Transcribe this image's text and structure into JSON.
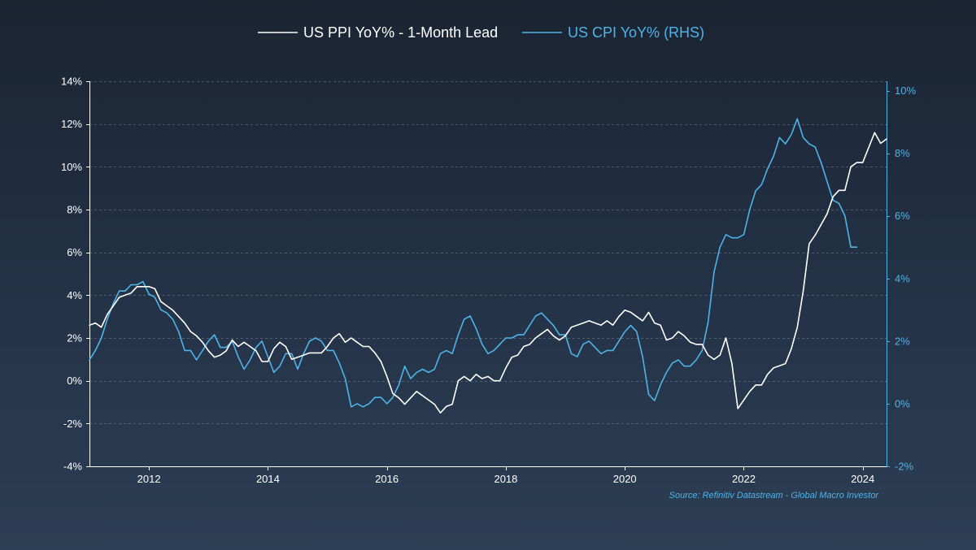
{
  "chart_data": {
    "type": "line",
    "x_range": [
      2011.0,
      2024.4
    ],
    "x_ticks": [
      "2012",
      "2014",
      "2016",
      "2018",
      "2020",
      "2022",
      "2024"
    ],
    "x_tick_values": [
      2012,
      2014,
      2016,
      2018,
      2020,
      2022,
      2024
    ],
    "y_left_range": [
      -4,
      14
    ],
    "y_left_ticks": [
      "-4%",
      "-2%",
      "0%",
      "2%",
      "4%",
      "6%",
      "8%",
      "10%",
      "12%",
      "14%"
    ],
    "y_left_tick_values": [
      -4,
      -2,
      0,
      2,
      4,
      6,
      8,
      10,
      12,
      14
    ],
    "y_right_range": [
      -2,
      10.3
    ],
    "y_right_ticks": [
      "-2%",
      "0%",
      "2%",
      "4%",
      "6%",
      "8%",
      "10%"
    ],
    "y_right_tick_values": [
      -2,
      0,
      2,
      4,
      6,
      8,
      10
    ],
    "grid": "horizontal dashed",
    "legend_position": "top-center",
    "source": "Source: Refinitiv Datastream - Global Macro Investor",
    "series": [
      {
        "name": "US PPI YoY% - 1-Month Lead",
        "axis": "left",
        "color": "#ffffff",
        "points": [
          [
            2011.0,
            2.6
          ],
          [
            2011.1,
            2.7
          ],
          [
            2011.2,
            2.5
          ],
          [
            2011.3,
            3.1
          ],
          [
            2011.4,
            3.5
          ],
          [
            2011.5,
            3.9
          ],
          [
            2011.6,
            4.0
          ],
          [
            2011.7,
            4.1
          ],
          [
            2011.8,
            4.4
          ],
          [
            2011.9,
            4.4
          ],
          [
            2012.0,
            4.4
          ],
          [
            2012.1,
            4.3
          ],
          [
            2012.2,
            3.7
          ],
          [
            2012.3,
            3.5
          ],
          [
            2012.4,
            3.3
          ],
          [
            2012.5,
            3.0
          ],
          [
            2012.6,
            2.7
          ],
          [
            2012.7,
            2.3
          ],
          [
            2012.8,
            2.1
          ],
          [
            2012.9,
            1.8
          ],
          [
            2013.0,
            1.4
          ],
          [
            2013.1,
            1.1
          ],
          [
            2013.2,
            1.2
          ],
          [
            2013.3,
            1.4
          ],
          [
            2013.4,
            1.9
          ],
          [
            2013.5,
            1.6
          ],
          [
            2013.6,
            1.8
          ],
          [
            2013.7,
            1.6
          ],
          [
            2013.8,
            1.4
          ],
          [
            2013.9,
            0.9
          ],
          [
            2014.0,
            0.9
          ],
          [
            2014.1,
            1.5
          ],
          [
            2014.2,
            1.8
          ],
          [
            2014.3,
            1.6
          ],
          [
            2014.4,
            1.0
          ],
          [
            2014.5,
            1.1
          ],
          [
            2014.6,
            1.2
          ],
          [
            2014.7,
            1.3
          ],
          [
            2014.8,
            1.3
          ],
          [
            2014.9,
            1.3
          ],
          [
            2015.0,
            1.6
          ],
          [
            2015.1,
            2.0
          ],
          [
            2015.2,
            2.2
          ],
          [
            2015.3,
            1.8
          ],
          [
            2015.4,
            2.0
          ],
          [
            2015.5,
            1.8
          ],
          [
            2015.6,
            1.6
          ],
          [
            2015.7,
            1.6
          ],
          [
            2015.8,
            1.3
          ],
          [
            2015.9,
            0.9
          ],
          [
            2016.0,
            0.2
          ],
          [
            2016.1,
            -0.6
          ],
          [
            2016.2,
            -0.8
          ],
          [
            2016.3,
            -1.1
          ],
          [
            2016.4,
            -0.8
          ],
          [
            2016.5,
            -0.5
          ],
          [
            2016.6,
            -0.7
          ],
          [
            2016.7,
            -0.9
          ],
          [
            2016.8,
            -1.1
          ],
          [
            2016.9,
            -1.5
          ],
          [
            2017.0,
            -1.2
          ],
          [
            2017.1,
            -1.1
          ],
          [
            2017.2,
            0.0
          ],
          [
            2017.3,
            0.2
          ],
          [
            2017.4,
            0.0
          ],
          [
            2017.5,
            0.3
          ],
          [
            2017.6,
            0.1
          ],
          [
            2017.7,
            0.2
          ],
          [
            2017.8,
            0.0
          ],
          [
            2017.9,
            0.0
          ],
          [
            2018.0,
            0.6
          ],
          [
            2018.1,
            1.1
          ],
          [
            2018.2,
            1.2
          ],
          [
            2018.3,
            1.6
          ],
          [
            2018.4,
            1.7
          ],
          [
            2018.5,
            2.0
          ],
          [
            2018.6,
            2.2
          ],
          [
            2018.7,
            2.4
          ],
          [
            2018.8,
            2.1
          ],
          [
            2018.9,
            1.9
          ],
          [
            2019.0,
            2.1
          ],
          [
            2019.1,
            2.5
          ],
          [
            2019.2,
            2.6
          ],
          [
            2019.3,
            2.7
          ],
          [
            2019.4,
            2.8
          ],
          [
            2019.5,
            2.7
          ],
          [
            2019.6,
            2.6
          ],
          [
            2019.7,
            2.8
          ],
          [
            2019.8,
            2.6
          ],
          [
            2019.9,
            3.0
          ],
          [
            2020.0,
            3.3
          ],
          [
            2020.1,
            3.2
          ],
          [
            2020.2,
            3.0
          ],
          [
            2020.3,
            2.8
          ],
          [
            2020.4,
            3.2
          ],
          [
            2020.5,
            2.7
          ],
          [
            2020.6,
            2.6
          ],
          [
            2020.7,
            1.9
          ],
          [
            2020.8,
            2.0
          ],
          [
            2020.9,
            2.3
          ],
          [
            2021.0,
            2.1
          ],
          [
            2021.1,
            1.8
          ],
          [
            2021.2,
            1.7
          ],
          [
            2021.3,
            1.7
          ],
          [
            2021.4,
            1.2
          ],
          [
            2021.5,
            1.0
          ],
          [
            2021.6,
            1.2
          ],
          [
            2021.7,
            2.0
          ],
          [
            2021.8,
            0.8
          ],
          [
            2021.9,
            -1.3
          ],
          [
            2022.0,
            -0.9
          ],
          [
            2022.1,
            -0.5
          ],
          [
            2022.2,
            -0.2
          ],
          [
            2022.3,
            -0.2
          ],
          [
            2022.4,
            0.3
          ],
          [
            2022.5,
            0.6
          ],
          [
            2022.6,
            0.7
          ],
          [
            2022.7,
            0.8
          ],
          [
            2022.8,
            1.5
          ],
          [
            2022.9,
            2.5
          ],
          [
            2023.0,
            4.2
          ],
          [
            2023.1,
            6.4
          ],
          [
            2023.2,
            6.8
          ],
          [
            2023.3,
            7.3
          ],
          [
            2023.4,
            7.8
          ],
          [
            2023.5,
            8.6
          ],
          [
            2023.6,
            8.9
          ],
          [
            2023.7,
            8.9
          ],
          [
            2023.8,
            10.0
          ],
          [
            2023.9,
            10.2
          ],
          [
            2024.0,
            10.2
          ],
          [
            2024.1,
            10.9
          ],
          [
            2024.2,
            11.6
          ],
          [
            2024.3,
            11.1
          ],
          [
            2024.4,
            11.3
          ]
        ]
      },
      {
        "name": "US CPI YoY% (RHS)",
        "axis": "right",
        "color": "#4fb3e8",
        "points": [
          [
            2011.0,
            1.4
          ],
          [
            2011.1,
            1.7
          ],
          [
            2011.2,
            2.1
          ],
          [
            2011.3,
            2.7
          ],
          [
            2011.4,
            3.2
          ],
          [
            2011.5,
            3.6
          ],
          [
            2011.6,
            3.6
          ],
          [
            2011.7,
            3.8
          ],
          [
            2011.8,
            3.8
          ],
          [
            2011.9,
            3.9
          ],
          [
            2012.0,
            3.5
          ],
          [
            2012.1,
            3.4
          ],
          [
            2012.2,
            3.0
          ],
          [
            2012.3,
            2.9
          ],
          [
            2012.4,
            2.7
          ],
          [
            2012.5,
            2.3
          ],
          [
            2012.6,
            1.7
          ],
          [
            2012.7,
            1.7
          ],
          [
            2012.8,
            1.4
          ],
          [
            2012.9,
            1.7
          ],
          [
            2013.0,
            2.0
          ],
          [
            2013.1,
            2.2
          ],
          [
            2013.2,
            1.8
          ],
          [
            2013.3,
            1.8
          ],
          [
            2013.4,
            2.0
          ],
          [
            2013.5,
            1.5
          ],
          [
            2013.6,
            1.1
          ],
          [
            2013.7,
            1.4
          ],
          [
            2013.8,
            1.8
          ],
          [
            2013.9,
            2.0
          ],
          [
            2014.0,
            1.5
          ],
          [
            2014.1,
            1.0
          ],
          [
            2014.2,
            1.2
          ],
          [
            2014.3,
            1.6
          ],
          [
            2014.4,
            1.6
          ],
          [
            2014.5,
            1.1
          ],
          [
            2014.6,
            1.6
          ],
          [
            2014.7,
            2.0
          ],
          [
            2014.8,
            2.1
          ],
          [
            2014.9,
            2.0
          ],
          [
            2015.0,
            1.7
          ],
          [
            2015.1,
            1.7
          ],
          [
            2015.2,
            1.3
          ],
          [
            2015.3,
            0.8
          ],
          [
            2015.4,
            -0.1
          ],
          [
            2015.5,
            0.0
          ],
          [
            2015.6,
            -0.1
          ],
          [
            2015.7,
            0.0
          ],
          [
            2015.8,
            0.2
          ],
          [
            2015.9,
            0.2
          ],
          [
            2016.0,
            0.0
          ],
          [
            2016.1,
            0.2
          ],
          [
            2016.2,
            0.6
          ],
          [
            2016.3,
            1.2
          ],
          [
            2016.4,
            0.8
          ],
          [
            2016.5,
            1.0
          ],
          [
            2016.6,
            1.1
          ],
          [
            2016.7,
            1.0
          ],
          [
            2016.8,
            1.1
          ],
          [
            2016.9,
            1.6
          ],
          [
            2017.0,
            1.7
          ],
          [
            2017.1,
            1.6
          ],
          [
            2017.2,
            2.2
          ],
          [
            2017.3,
            2.7
          ],
          [
            2017.4,
            2.8
          ],
          [
            2017.5,
            2.4
          ],
          [
            2017.6,
            1.9
          ],
          [
            2017.7,
            1.6
          ],
          [
            2017.8,
            1.7
          ],
          [
            2017.9,
            1.9
          ],
          [
            2018.0,
            2.1
          ],
          [
            2018.1,
            2.1
          ],
          [
            2018.2,
            2.2
          ],
          [
            2018.3,
            2.2
          ],
          [
            2018.4,
            2.5
          ],
          [
            2018.5,
            2.8
          ],
          [
            2018.6,
            2.9
          ],
          [
            2018.7,
            2.7
          ],
          [
            2018.8,
            2.5
          ],
          [
            2018.9,
            2.2
          ],
          [
            2019.0,
            2.2
          ],
          [
            2019.1,
            1.6
          ],
          [
            2019.2,
            1.5
          ],
          [
            2019.3,
            1.9
          ],
          [
            2019.4,
            2.0
          ],
          [
            2019.5,
            1.8
          ],
          [
            2019.6,
            1.6
          ],
          [
            2019.7,
            1.7
          ],
          [
            2019.8,
            1.7
          ],
          [
            2019.9,
            2.0
          ],
          [
            2020.0,
            2.3
          ],
          [
            2020.1,
            2.5
          ],
          [
            2020.2,
            2.3
          ],
          [
            2020.3,
            1.5
          ],
          [
            2020.4,
            0.3
          ],
          [
            2020.5,
            0.1
          ],
          [
            2020.6,
            0.6
          ],
          [
            2020.7,
            1.0
          ],
          [
            2020.8,
            1.3
          ],
          [
            2020.9,
            1.4
          ],
          [
            2021.0,
            1.2
          ],
          [
            2021.1,
            1.2
          ],
          [
            2021.2,
            1.4
          ],
          [
            2021.3,
            1.7
          ],
          [
            2021.4,
            2.6
          ],
          [
            2021.5,
            4.2
          ],
          [
            2021.6,
            5.0
          ],
          [
            2021.7,
            5.4
          ],
          [
            2021.8,
            5.3
          ],
          [
            2021.9,
            5.3
          ],
          [
            2022.0,
            5.4
          ],
          [
            2022.1,
            6.2
          ],
          [
            2022.2,
            6.8
          ],
          [
            2022.3,
            7.0
          ],
          [
            2022.4,
            7.5
          ],
          [
            2022.5,
            7.9
          ],
          [
            2022.6,
            8.5
          ],
          [
            2022.7,
            8.3
          ],
          [
            2022.8,
            8.6
          ],
          [
            2022.9,
            9.1
          ],
          [
            2023.0,
            8.5
          ],
          [
            2023.1,
            8.3
          ],
          [
            2023.2,
            8.2
          ],
          [
            2023.3,
            7.7
          ],
          [
            2023.4,
            7.1
          ],
          [
            2023.5,
            6.5
          ],
          [
            2023.6,
            6.4
          ],
          [
            2023.7,
            6.0
          ],
          [
            2023.8,
            5.0
          ],
          [
            2023.9,
            5.0
          ]
        ]
      }
    ]
  }
}
